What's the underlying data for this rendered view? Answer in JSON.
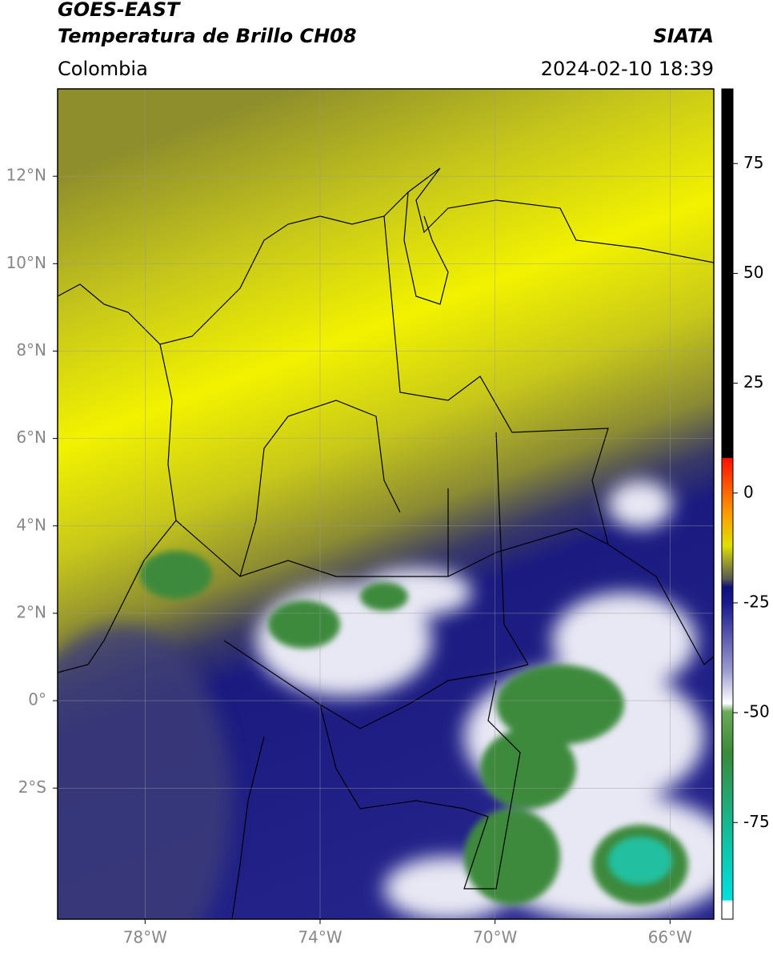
{
  "header": {
    "title": "GOES-EAST",
    "subtitle": "Temperatura de Brillo CH08",
    "region": "Colombia",
    "source": "SIATA",
    "timestamp": "2024-02-10 18:39"
  },
  "map": {
    "xlim": [
      -80,
      -65
    ],
    "ylim": [
      -5,
      14
    ],
    "xticks": [
      {
        "value": -78,
        "label": "78°W"
      },
      {
        "value": -74,
        "label": "74°W"
      },
      {
        "value": -70,
        "label": "70°W"
      },
      {
        "value": -66,
        "label": "66°W"
      }
    ],
    "yticks": [
      {
        "value": 12,
        "label": "12°N"
      },
      {
        "value": 10,
        "label": "10°N"
      },
      {
        "value": 8,
        "label": "8°N"
      },
      {
        "value": 6,
        "label": "6°N"
      },
      {
        "value": 4,
        "label": "4°N"
      },
      {
        "value": 2,
        "label": "2°N"
      },
      {
        "value": 0,
        "label": "0°"
      },
      {
        "value": -2,
        "label": "2°S"
      }
    ],
    "grid": true
  },
  "colorbar": {
    "ylim": [
      -97,
      92
    ],
    "yticks": [
      75,
      50,
      25,
      0,
      -25,
      -50,
      -75
    ]
  }
}
